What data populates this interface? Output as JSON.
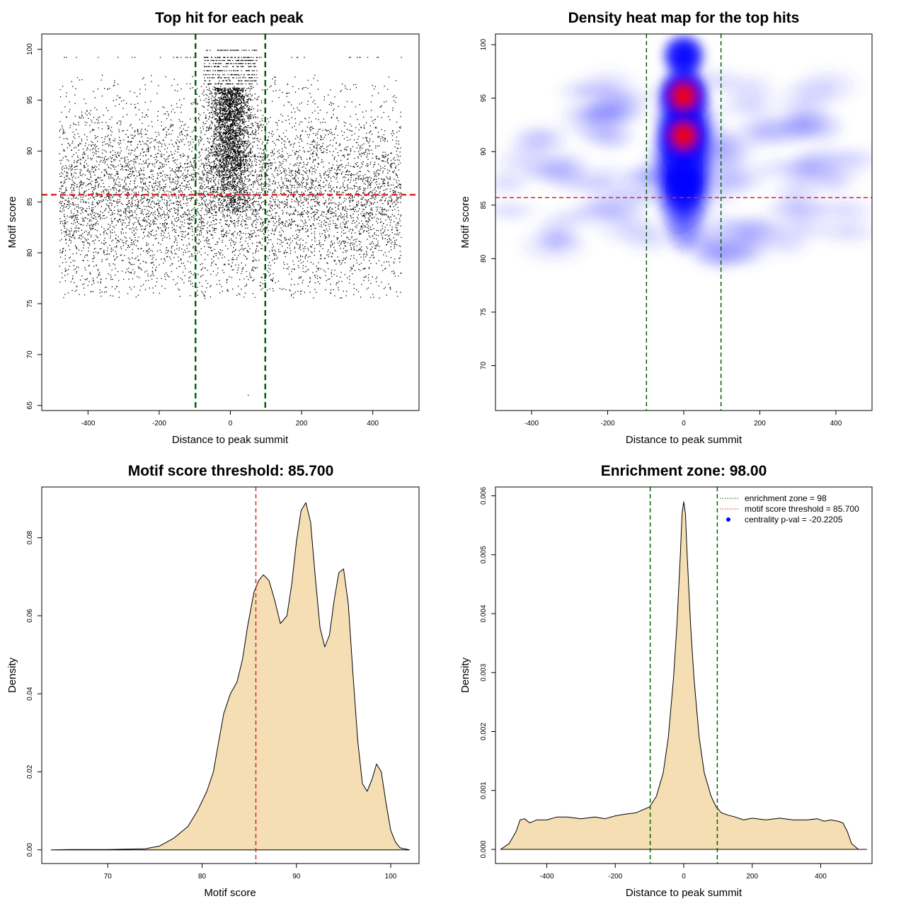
{
  "chart_data": [
    {
      "type": "scatter",
      "title": "Top hit for each peak",
      "xlabel": "Distance to peak summit",
      "ylabel": "Motif score",
      "xlim": [
        -530,
        530
      ],
      "ylim": [
        64.5,
        101.5
      ],
      "x_ticks": [
        -400,
        -200,
        0,
        200,
        400
      ],
      "y_ticks": [
        65,
        70,
        75,
        80,
        85,
        90,
        95,
        100
      ],
      "x_tick_labels": [
        "-400",
        "-200",
        "0",
        "200",
        "400"
      ],
      "y_tick_labels": [
        "65",
        "70",
        "75",
        "80",
        "85",
        "90",
        "95",
        "100"
      ],
      "points": {
        "description": "~10,000 motif hits: x uniform in [-480, 480] background plus a dense cluster near x=0 (sd ~30) with scores 84-100, concentrated at 90-96",
        "background_count": 7000,
        "central_count": 3200,
        "x_range": [
          -480,
          480
        ],
        "central_x_sd": 30,
        "score_range": [
          75.5,
          99.9
        ],
        "central_score_range": [
          84,
          100
        ],
        "outlier": [
          50,
          66
        ]
      },
      "hlines": [
        {
          "y": 85.7,
          "color": "#d62728",
          "style": "dashed"
        }
      ],
      "vlines": [
        {
          "x": -98,
          "color": "#006400",
          "style": "dashed"
        },
        {
          "x": 98,
          "color": "#006400",
          "style": "dashed"
        }
      ]
    },
    {
      "type": "heatmap",
      "title": "Density heat map for the top hits",
      "xlabel": "Distance to peak summit",
      "ylabel": "Motif score",
      "xlim": [
        -495,
        495
      ],
      "ylim": [
        65.8,
        101.0
      ],
      "x_ticks": [
        -400,
        -200,
        0,
        200,
        400
      ],
      "y_ticks": [
        70,
        75,
        80,
        85,
        90,
        95,
        100
      ],
      "x_tick_labels": [
        "-400",
        "-200",
        "0",
        "200",
        "400"
      ],
      "y_tick_labels": [
        "70",
        "75",
        "80",
        "85",
        "90",
        "95",
        "100"
      ],
      "color_scale": [
        "#ffffff",
        "#0000ff",
        "#ff0000"
      ],
      "density_peaks": [
        {
          "x": 0,
          "y": 95.2,
          "level": "high"
        },
        {
          "x": 0,
          "y": 91.5,
          "level": "high"
        },
        {
          "x": 0,
          "y": 99,
          "level": "medium"
        },
        {
          "x": 0,
          "y": 87,
          "level": "medium"
        }
      ],
      "hlines": [
        {
          "y": 85.7,
          "color": "#d62728",
          "style": "dashed"
        }
      ],
      "vlines": [
        {
          "x": -98,
          "color": "#006400",
          "style": "dashed"
        },
        {
          "x": 98,
          "color": "#006400",
          "style": "dashed"
        }
      ]
    },
    {
      "type": "area",
      "title": "Motif score threshold: 85.700",
      "xlabel": "Motif score",
      "ylabel": "Density",
      "xlim": [
        63,
        103
      ],
      "ylim": [
        -0.0035,
        0.093
      ],
      "x_ticks": [
        70,
        80,
        90,
        100
      ],
      "y_ticks": [
        0.0,
        0.02,
        0.04,
        0.06,
        0.08
      ],
      "x_tick_labels": [
        "70",
        "80",
        "90",
        "100"
      ],
      "y_tick_labels": [
        "0.00",
        "0.02",
        "0.04",
        "0.06",
        "0.08"
      ],
      "fill_color": "#f5deb3",
      "x": [
        64,
        66,
        70,
        74,
        75.5,
        77,
        78.5,
        79.5,
        80.5,
        81.2,
        81.7,
        82.3,
        83,
        83.7,
        84.3,
        84.8,
        85.5,
        86,
        86.5,
        87.1,
        87.7,
        88.3,
        89,
        89.5,
        90,
        90.5,
        91,
        91.5,
        92,
        92.5,
        93,
        93.5,
        94,
        94.5,
        95,
        95.5,
        96,
        96.5,
        97,
        97.5,
        98,
        98.5,
        99,
        99.5,
        100,
        100.5,
        101,
        102
      ],
      "values": [
        0.0,
        0.0001,
        0.0001,
        0.0003,
        0.001,
        0.003,
        0.006,
        0.01,
        0.015,
        0.02,
        0.027,
        0.035,
        0.04,
        0.043,
        0.049,
        0.057,
        0.066,
        0.069,
        0.0705,
        0.069,
        0.064,
        0.058,
        0.06,
        0.068,
        0.079,
        0.087,
        0.089,
        0.084,
        0.07,
        0.057,
        0.052,
        0.055,
        0.064,
        0.071,
        0.072,
        0.063,
        0.045,
        0.028,
        0.017,
        0.015,
        0.018,
        0.022,
        0.02,
        0.012,
        0.005,
        0.002,
        0.0005,
        0.0
      ],
      "vlines": [
        {
          "x": 85.7,
          "color": "#d62728",
          "style": "dashed"
        }
      ]
    },
    {
      "type": "area",
      "title": "Enrichment zone: 98.00",
      "xlabel": "Distance to peak summit",
      "ylabel": "Density",
      "xlim": [
        -550,
        550
      ],
      "ylim": [
        -0.00024,
        0.00615
      ],
      "x_ticks": [
        -400,
        -200,
        0,
        200,
        400
      ],
      "y_ticks": [
        0.0,
        0.001,
        0.002,
        0.003,
        0.004,
        0.005,
        0.006
      ],
      "x_tick_labels": [
        "-400",
        "-200",
        "0",
        "200",
        "400"
      ],
      "y_tick_labels": [
        "0.000",
        "0.001",
        "0.002",
        "0.003",
        "0.004",
        "0.005",
        "0.006"
      ],
      "fill_color": "#f5deb3",
      "x": [
        -535,
        -510,
        -490,
        -478,
        -465,
        -450,
        -430,
        -400,
        -370,
        -340,
        -300,
        -260,
        -230,
        -200,
        -170,
        -140,
        -120,
        -100,
        -80,
        -60,
        -45,
        -30,
        -20,
        -10,
        -5,
        0,
        5,
        10,
        20,
        30,
        45,
        60,
        80,
        95,
        110,
        130,
        150,
        175,
        200,
        240,
        280,
        320,
        360,
        390,
        410,
        430,
        450,
        465,
        478,
        490,
        510,
        535
      ],
      "values": [
        0.0,
        0.0001,
        0.0003,
        0.0005,
        0.00052,
        0.00045,
        0.0005,
        0.0005,
        0.00055,
        0.00055,
        0.00052,
        0.00055,
        0.00052,
        0.00057,
        0.0006,
        0.00062,
        0.00067,
        0.00072,
        0.0009,
        0.0013,
        0.0019,
        0.0029,
        0.0038,
        0.005,
        0.0057,
        0.0059,
        0.0057,
        0.005,
        0.0038,
        0.0029,
        0.0019,
        0.0013,
        0.0009,
        0.00072,
        0.00062,
        0.00058,
        0.00055,
        0.0005,
        0.00053,
        0.0005,
        0.00053,
        0.0005,
        0.0005,
        0.00052,
        0.00048,
        0.0005,
        0.00048,
        0.00045,
        0.0003,
        0.0001,
        0.0,
        0.0
      ],
      "vlines": [
        {
          "x": -98,
          "color": "#006400",
          "style": "dashed"
        },
        {
          "x": 98,
          "color": "#006400",
          "style": "dashed"
        }
      ],
      "legend": {
        "position": "top-right",
        "entries": [
          {
            "label": "enrichment zone = 98",
            "color": "#006400",
            "marker": "dotted-line"
          },
          {
            "label": "motif score threshold = 85.700",
            "color": "#d62728",
            "marker": "dotted-line"
          },
          {
            "label": "centrality p-val = -20.2205",
            "color": "#0000ff",
            "marker": "dot"
          }
        ]
      }
    }
  ]
}
